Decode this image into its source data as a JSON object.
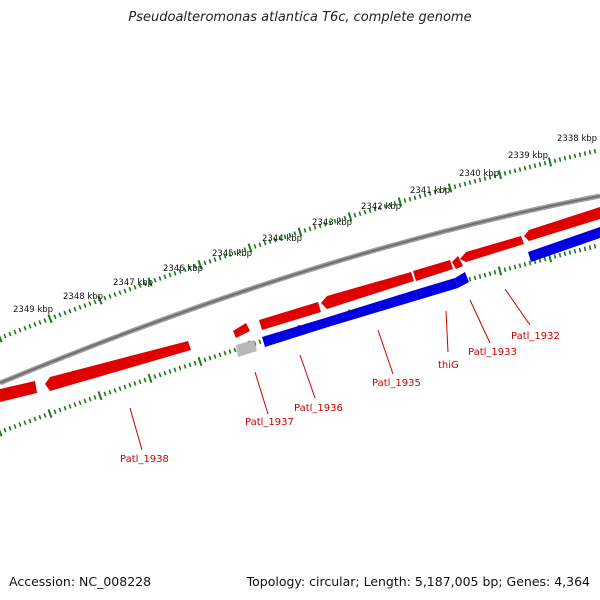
{
  "title": "Pseudoalteromonas atlantica T6c, complete genome",
  "accession": "Accession: NC_008228",
  "summary": "Topology: circular; Length: 5,187,005 bp; Genes: 4,364",
  "colors": {
    "forward_gene": "#e00000",
    "reverse_gene": "#0000e0",
    "other_feature": "#b0b0b0",
    "backbone": "#808080",
    "ticks": "#1a7a1a",
    "labels": "#cc0000"
  },
  "kbp_labels": [
    "2338 kbp",
    "2339 kbp",
    "2340 kbp",
    "2341 kbp",
    "2342 kbp",
    "2343 kbp",
    "2344 kbp",
    "2345 kbp",
    "2346 kbp",
    "2347 kbp",
    "2348 kbp",
    "2349 kbp"
  ],
  "genes": [
    {
      "label": "Patl_1932",
      "strand": "forward"
    },
    {
      "label": "Patl_1933",
      "strand": "forward"
    },
    {
      "label": "thiG",
      "strand": "forward"
    },
    {
      "label": "Patl_1935",
      "strand": "forward"
    },
    {
      "label": "Patl_1936",
      "strand": "forward"
    },
    {
      "label": "Patl_1937",
      "strand": "forward"
    },
    {
      "label": "Patl_1938",
      "strand": "forward"
    }
  ]
}
